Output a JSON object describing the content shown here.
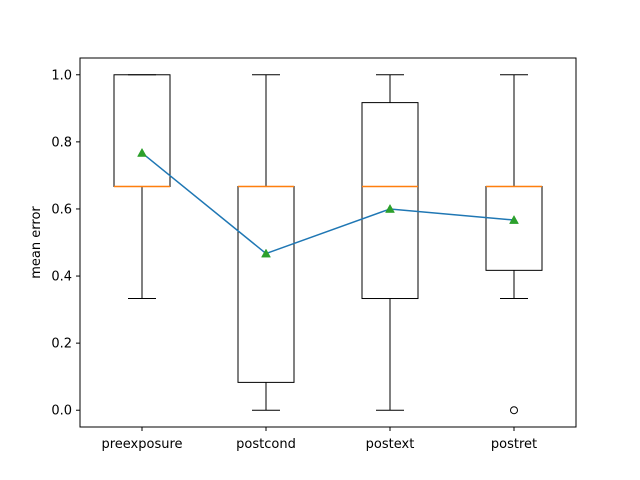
{
  "chart_data": {
    "type": "box",
    "title": "",
    "xlabel": "",
    "ylabel": "mean error",
    "categories": [
      "preexposure",
      "postcond",
      "postext",
      "postret"
    ],
    "ylim": [
      -0.05,
      1.05
    ],
    "yticks": [
      0.0,
      0.2,
      0.4,
      0.6,
      0.8,
      1.0
    ],
    "ytick_labels": [
      "0.0",
      "0.2",
      "0.4",
      "0.6",
      "0.8",
      "1.0"
    ],
    "grid": false,
    "boxes": [
      {
        "category": "preexposure",
        "whisker_low": 0.333,
        "q1": 0.667,
        "median": 0.667,
        "q3": 1.0,
        "whisker_high": 1.0,
        "mean": 0.767,
        "outliers": []
      },
      {
        "category": "postcond",
        "whisker_low": 0.0,
        "q1": 0.083,
        "median": 0.667,
        "q3": 0.667,
        "whisker_high": 1.0,
        "mean": 0.467,
        "outliers": []
      },
      {
        "category": "postext",
        "whisker_low": 0.0,
        "q1": 0.333,
        "median": 0.667,
        "q3": 0.917,
        "whisker_high": 1.0,
        "mean": 0.6,
        "outliers": []
      },
      {
        "category": "postret",
        "whisker_low": 0.333,
        "q1": 0.417,
        "median": 0.667,
        "q3": 0.667,
        "whisker_high": 1.0,
        "mean": 0.567,
        "outliers": [
          0.0
        ]
      }
    ],
    "mean_line": {
      "values": [
        0.767,
        0.467,
        0.6,
        0.567
      ]
    },
    "colors": {
      "box": "#000000",
      "median": "#ff7f0e",
      "mean_line": "#1f77b4",
      "mean_marker": "#2ca02c"
    }
  }
}
